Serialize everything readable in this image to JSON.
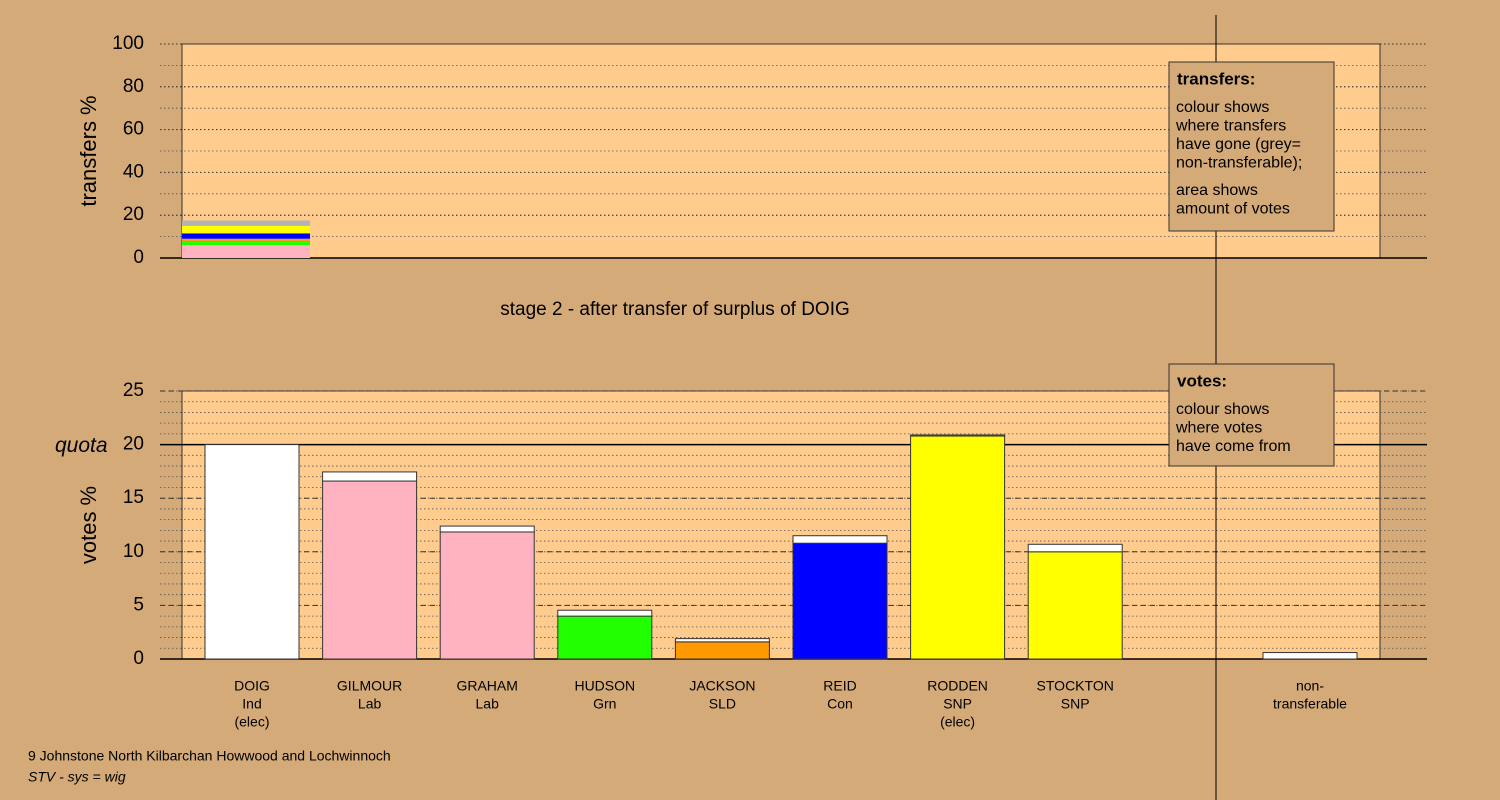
{
  "chart_data": [
    {
      "type": "stacked-bar",
      "ylabel": "transfers %",
      "ylim": [
        0,
        100
      ],
      "yticks": [
        0,
        20,
        40,
        60,
        80,
        100
      ],
      "minor_step": 10,
      "categories": [
        "DOIG"
      ],
      "series": [
        {
          "color": "#ffb3c1",
          "values": [
            3.5
          ]
        },
        {
          "color": "#ffb3c1",
          "values": [
            2.5
          ]
        },
        {
          "color": "#22ff00",
          "values": [
            2.0
          ]
        },
        {
          "color": "#ff9900",
          "values": [
            1.0
          ]
        },
        {
          "color": "#0000ff",
          "values": [
            2.5
          ]
        },
        {
          "color": "#ffff00",
          "values": [
            1.0
          ]
        },
        {
          "color": "#ffff00",
          "values": [
            2.5
          ]
        },
        {
          "color": "#b4b4b4",
          "values": [
            2.5
          ]
        }
      ],
      "legend_title": "transfers:",
      "legend_lines": [
        "colour shows",
        "where transfers",
        "have gone (grey=",
        "non-transferable);"
      ],
      "legend_lines2": [
        "area shows",
        "amount of votes"
      ]
    },
    {
      "type": "vote-bar",
      "title": "stage 2 - after transfer of surplus of DOIG",
      "ylabel": "votes %",
      "ylim": [
        0,
        25
      ],
      "yticks": [
        0,
        5,
        10,
        15,
        20,
        25
      ],
      "minor_step": 1,
      "quota": 20,
      "quota_label": "quota",
      "labels": [
        [
          "DOIG",
          "Ind",
          "(elec)"
        ],
        [
          "GILMOUR",
          "Lab"
        ],
        [
          "GRAHAM",
          "Lab"
        ],
        [
          "HUDSON",
          "Grn"
        ],
        [
          "JACKSON",
          "SLD"
        ],
        [
          "REID",
          "Con"
        ],
        [
          "RODDEN",
          "SNP",
          "(elec)"
        ],
        [
          "STOCKTON",
          "SNP"
        ],
        [
          "non-",
          "transferable"
        ]
      ],
      "base_values": [
        20,
        16.6,
        11.85,
        4.0,
        1.6,
        10.8,
        20.8,
        10.0,
        0
      ],
      "base_colors": [
        "#ffffff",
        "#ffb3c1",
        "#ffb3c1",
        "#22ff00",
        "#ff9900",
        "#0000ff",
        "#ffff00",
        "#ffff00",
        "#ffffff"
      ],
      "transfer_values": [
        0,
        0.85,
        0.55,
        0.55,
        0.3,
        0.7,
        0.1,
        0.7,
        0.6
      ],
      "transfer_color": "#ffffff",
      "legend_title": "votes:",
      "legend_lines": [
        "colour shows",
        "where votes",
        "have come from"
      ]
    }
  ],
  "footer": [
    "9 Johnstone North Kilbarchan Howwood and Lochwinnoch",
    "STV - sys = wig"
  ]
}
